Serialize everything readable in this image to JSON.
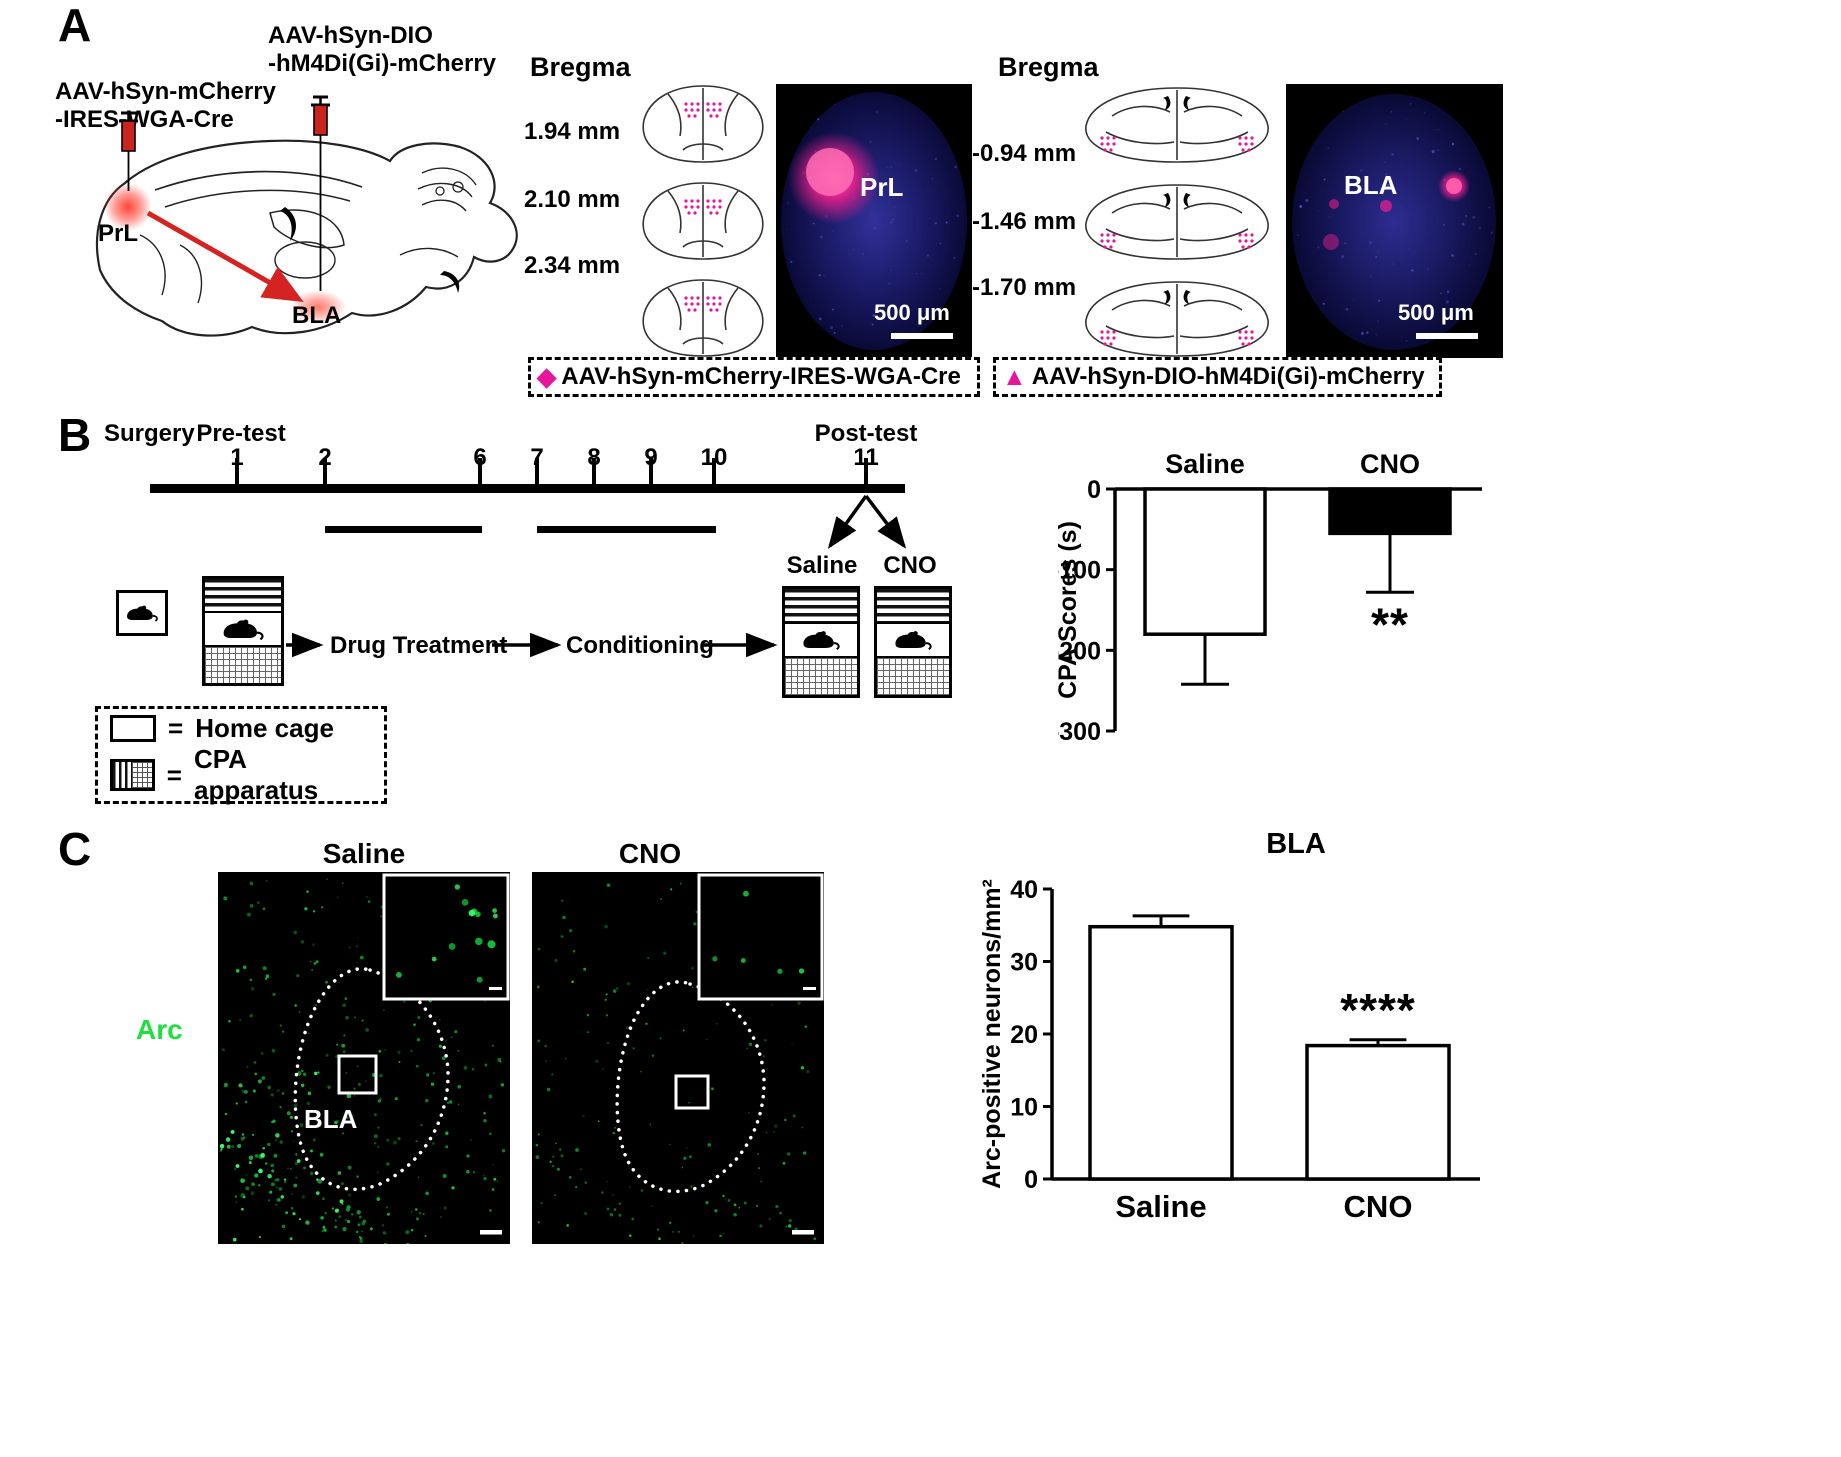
{
  "colors": {
    "magenta": "#e8159c",
    "red": "#d42320",
    "pink_signal": "#f21f8d",
    "navy": "#1a1a66",
    "green": "#1ddf3e",
    "black": "#000000",
    "white": "#ffffff"
  },
  "panelA": {
    "label": "A",
    "injection_prl": {
      "line1": "AAV-hSyn-mCherry",
      "line2": "-IRES-WGA-Cre"
    },
    "injection_bla": {
      "line1": "AAV-hSyn-DIO",
      "line2": "-hM4Di(Gi)-mCherry"
    },
    "prl": "PrL",
    "bla": "BLA",
    "left": {
      "bregma": "Bregma",
      "levels": [
        "1.94 mm",
        "2.10 mm",
        "2.34 mm"
      ],
      "image_label": "PrL",
      "scale": "500 μm",
      "legend_marker": "◆",
      "legend_text": "AAV-hSyn-mCherry-IRES-WGA-Cre"
    },
    "right": {
      "bregma": "Bregma",
      "levels": [
        "-0.94 mm",
        "-1.46 mm",
        "-1.70 mm"
      ],
      "image_label": "BLA",
      "scale": "500 μm",
      "legend_marker": "▲",
      "legend_text": "AAV-hSyn-DIO-hM4Di(Gi)-mCherry"
    }
  },
  "panelB": {
    "label": "B",
    "surgery": "Surgery",
    "pretest": "Pre-test",
    "posttest": "Post-test",
    "ticks": [
      "1",
      "2",
      "6",
      "7",
      "8",
      "9",
      "10",
      "11"
    ],
    "saline": "Saline",
    "cno": "CNO",
    "drug_treatment": "Drug Treatment",
    "conditioning": "Conditioning",
    "legend": {
      "eq": "=",
      "home": "Home cage",
      "cpa": "CPA apparatus"
    }
  },
  "panelC": {
    "label": "C",
    "saline": "Saline",
    "cno": "CNO",
    "arc": "Arc",
    "bla": "BLA"
  },
  "chart_data": [
    {
      "type": "bar",
      "title": "",
      "categories": [
        "Saline",
        "CNO"
      ],
      "values": [
        -180,
        -55
      ],
      "errors": [
        62,
        73
      ],
      "ylabel": "CPA Scores (s)",
      "ylim": [
        -300,
        0
      ],
      "yticks": [
        0,
        -100,
        -200,
        -300
      ],
      "bar_fills": [
        "#ffffff",
        "#000000"
      ],
      "significance": {
        "label": "**",
        "on": "CNO"
      },
      "category_label_position": "top",
      "legend_position": "none",
      "grid": false
    },
    {
      "type": "bar",
      "title": "BLA",
      "categories": [
        "Saline",
        "CNO"
      ],
      "values": [
        34.8,
        18.4
      ],
      "errors": [
        1.5,
        0.8
      ],
      "ylabel": "Arc-positive neurons/mm²",
      "ylim": [
        0,
        40
      ],
      "yticks": [
        0,
        10,
        20,
        30,
        40
      ],
      "bar_fills": [
        "#ffffff",
        "#ffffff"
      ],
      "significance": {
        "label": "****",
        "on": "CNO"
      },
      "category_label_position": "bottom",
      "legend_position": "none",
      "grid": false
    }
  ]
}
